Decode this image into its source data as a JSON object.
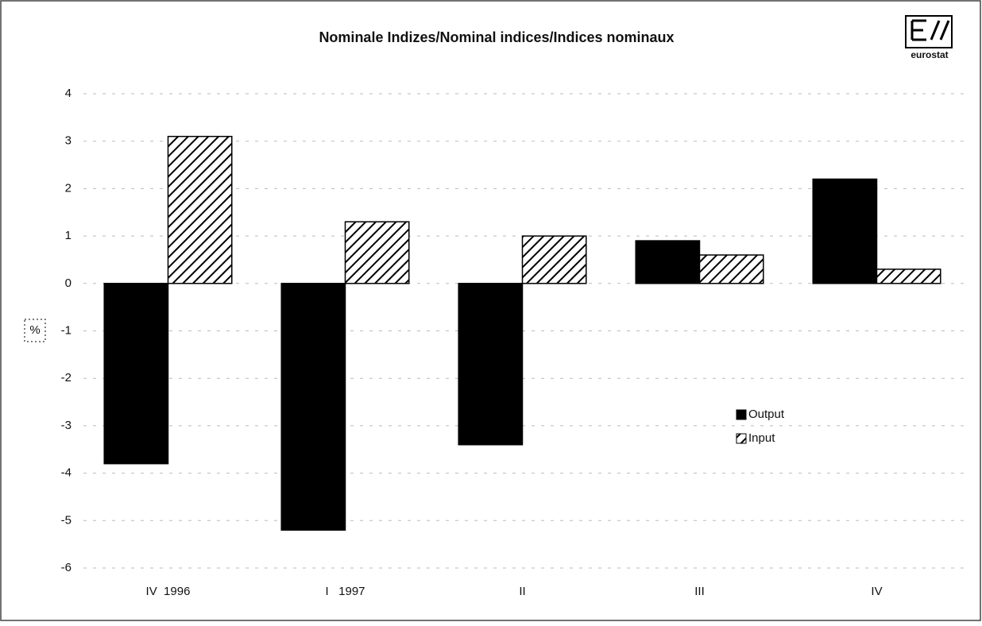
{
  "logo": "eurostat",
  "chart_data": {
    "type": "bar",
    "title": "Nominale Indizes/Nominal indices/Indices nominaux",
    "y_label": "%",
    "categories": [
      "IV  1996",
      "I   1997",
      "II",
      "III",
      "IV"
    ],
    "series": [
      {
        "name": "Output",
        "color": "#000000",
        "hatch": false,
        "values": [
          -3.8,
          -5.2,
          -3.4,
          0.9,
          2.2
        ]
      },
      {
        "name": "Input",
        "color": "#000000",
        "hatch": true,
        "values": [
          3.1,
          1.3,
          1.0,
          0.6,
          0.3
        ]
      }
    ],
    "ylim": [
      -6,
      4
    ],
    "yticks": [
      -6,
      -5,
      -4,
      -3,
      -2,
      -1,
      0,
      1,
      2,
      3,
      4
    ],
    "grid": true,
    "legend": "right"
  }
}
